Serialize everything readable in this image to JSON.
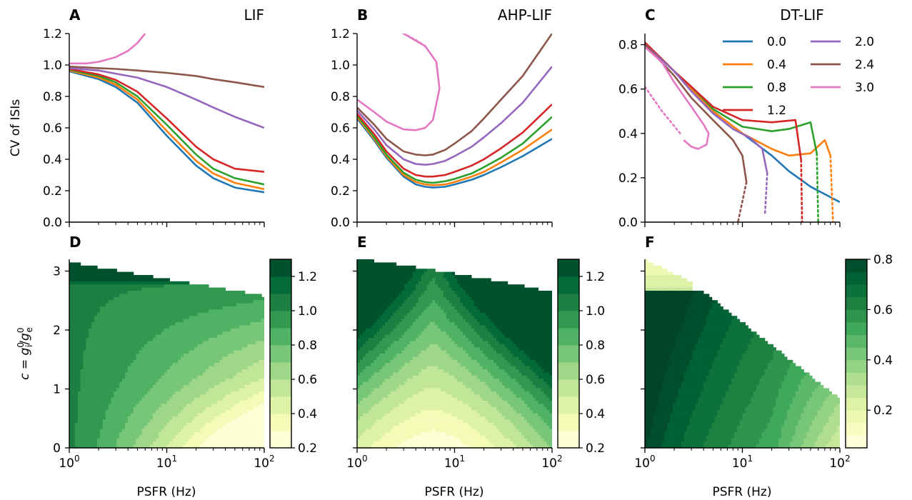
{
  "figure": {
    "panel_labels": [
      "A",
      "B",
      "C",
      "D",
      "E",
      "F"
    ],
    "titles": [
      "LIF",
      "AHP-LIF",
      "DT-LIF"
    ],
    "xlabel": "PSFR (Hz)",
    "ylabel_top": "CV of ISIs",
    "ylabel_bottom": "c = g_i^0/g_e^0",
    "legend_title": ""
  },
  "chart_data": [
    {
      "panel": "A",
      "type": "line",
      "title": "LIF",
      "xlabel": "",
      "ylabel": "CV of ISIs",
      "xscale": "log",
      "xlim": [
        1,
        100
      ],
      "ylim": [
        0,
        1.2
      ],
      "xticks": [
        1,
        10,
        100
      ],
      "xtick_labels": [
        "",
        "",
        ""
      ],
      "yticks": [
        0,
        0.2,
        0.4,
        0.6,
        0.8,
        1.0,
        1.2
      ],
      "ytick_labels": [
        "0.0",
        "0.2",
        "0.4",
        "0.6",
        "0.8",
        "1.0",
        "1.2"
      ],
      "series": [
        {
          "name": "0.0",
          "color": "#1f77b4",
          "x": [
            1,
            2,
            3,
            5,
            10,
            20,
            30,
            50,
            100
          ],
          "y": [
            0.96,
            0.91,
            0.86,
            0.76,
            0.55,
            0.36,
            0.28,
            0.22,
            0.19
          ]
        },
        {
          "name": "0.4",
          "color": "#ff7f0e",
          "x": [
            1,
            2,
            3,
            5,
            10,
            20,
            30,
            50,
            100
          ],
          "y": [
            0.965,
            0.92,
            0.875,
            0.78,
            0.58,
            0.39,
            0.31,
            0.25,
            0.21
          ]
        },
        {
          "name": "0.8",
          "color": "#2ca02c",
          "x": [
            1,
            2,
            3,
            5,
            10,
            20,
            30,
            50,
            100
          ],
          "y": [
            0.97,
            0.93,
            0.89,
            0.8,
            0.62,
            0.43,
            0.34,
            0.28,
            0.24
          ]
        },
        {
          "name": "1.2",
          "color": "#d62728",
          "x": [
            1,
            2,
            3,
            5,
            10,
            20,
            30,
            50,
            100
          ],
          "y": [
            0.975,
            0.94,
            0.905,
            0.83,
            0.66,
            0.48,
            0.4,
            0.34,
            0.32
          ]
        },
        {
          "name": "2.0",
          "color": "#9467bd",
          "x": [
            1,
            2,
            3,
            5,
            10,
            20,
            30,
            50,
            100
          ],
          "y": [
            0.98,
            0.965,
            0.945,
            0.92,
            0.86,
            0.78,
            0.73,
            0.67,
            0.6
          ]
        },
        {
          "name": "2.4",
          "color": "#8c564b",
          "x": [
            1,
            2,
            3,
            5,
            10,
            20,
            30,
            50,
            100
          ],
          "y": [
            0.99,
            0.98,
            0.975,
            0.965,
            0.95,
            0.93,
            0.91,
            0.89,
            0.86
          ]
        },
        {
          "name": "3.0",
          "color": "#e377c2",
          "x": [
            1,
            1.5,
            2,
            3,
            4,
            5,
            6
          ],
          "y": [
            1.01,
            1.01,
            1.02,
            1.05,
            1.09,
            1.14,
            1.2
          ]
        }
      ]
    },
    {
      "panel": "B",
      "type": "line",
      "title": "AHP-LIF",
      "xlabel": "",
      "ylabel": "",
      "xscale": "log",
      "xlim": [
        1,
        100
      ],
      "ylim": [
        0,
        1.2
      ],
      "xticks": [
        1,
        10,
        100
      ],
      "xtick_labels": [
        "",
        "",
        ""
      ],
      "yticks": [
        0,
        0.2,
        0.4,
        0.6,
        0.8,
        1.0,
        1.2
      ],
      "ytick_labels": [
        "0.0",
        "0.2",
        "0.4",
        "0.6",
        "0.8",
        "1.0",
        "1.2"
      ],
      "series": [
        {
          "name": "0.0",
          "color": "#1f77b4",
          "x": [
            1,
            1.5,
            2,
            3,
            4,
            5,
            6,
            8,
            10,
            15,
            20,
            30,
            50,
            100
          ],
          "y": [
            0.66,
            0.52,
            0.41,
            0.29,
            0.24,
            0.225,
            0.22,
            0.225,
            0.24,
            0.27,
            0.3,
            0.35,
            0.42,
            0.53
          ]
        },
        {
          "name": "0.4",
          "color": "#ff7f0e",
          "x": [
            1,
            1.5,
            2,
            3,
            4,
            5,
            6,
            8,
            10,
            15,
            20,
            30,
            50,
            100
          ],
          "y": [
            0.67,
            0.53,
            0.42,
            0.3,
            0.255,
            0.24,
            0.235,
            0.24,
            0.255,
            0.29,
            0.32,
            0.38,
            0.46,
            0.59
          ]
        },
        {
          "name": "0.8",
          "color": "#2ca02c",
          "x": [
            1,
            1.5,
            2,
            3,
            4,
            5,
            6,
            8,
            10,
            15,
            20,
            30,
            50,
            100
          ],
          "y": [
            0.68,
            0.54,
            0.43,
            0.315,
            0.27,
            0.255,
            0.25,
            0.26,
            0.275,
            0.31,
            0.35,
            0.41,
            0.5,
            0.67
          ]
        },
        {
          "name": "1.2",
          "color": "#d62728",
          "x": [
            1,
            1.5,
            2,
            3,
            4,
            5,
            6,
            8,
            10,
            15,
            20,
            30,
            50,
            100
          ],
          "y": [
            0.69,
            0.56,
            0.45,
            0.34,
            0.3,
            0.29,
            0.29,
            0.3,
            0.32,
            0.36,
            0.4,
            0.47,
            0.57,
            0.75
          ]
        },
        {
          "name": "2.0",
          "color": "#9467bd",
          "x": [
            1,
            1.5,
            2,
            3,
            4,
            5,
            6,
            8,
            10,
            15,
            20,
            30,
            50,
            100
          ],
          "y": [
            0.71,
            0.59,
            0.49,
            0.4,
            0.37,
            0.365,
            0.37,
            0.39,
            0.42,
            0.48,
            0.54,
            0.63,
            0.76,
            0.99
          ]
        },
        {
          "name": "2.4",
          "color": "#8c564b",
          "x": [
            1,
            1.5,
            2,
            3,
            4,
            5,
            6,
            8,
            10,
            15,
            20,
            30,
            50,
            100
          ],
          "y": [
            0.73,
            0.62,
            0.53,
            0.45,
            0.43,
            0.425,
            0.43,
            0.46,
            0.5,
            0.58,
            0.66,
            0.78,
            0.93,
            1.2
          ]
        },
        {
          "name": "3.0",
          "color": "#e377c2",
          "x": [
            1,
            1.5,
            2,
            3,
            4,
            5,
            6
          ],
          "y": [
            0.78,
            0.7,
            0.64,
            0.59,
            0.585,
            0.6,
            0.65
          ],
          "x_upper": [
            6,
            7,
            6.5,
            5,
            3
          ],
          "y_upper": [
            0.65,
            0.85,
            1.02,
            1.12,
            1.2
          ]
        }
      ]
    },
    {
      "panel": "C",
      "type": "line",
      "title": "DT-LIF",
      "xlabel": "",
      "ylabel": "",
      "xscale": "log",
      "xlim": [
        1,
        100
      ],
      "ylim": [
        0,
        0.85
      ],
      "xticks": [
        1,
        10,
        100
      ],
      "xtick_labels": [
        "",
        "",
        ""
      ],
      "yticks": [
        0,
        0.2,
        0.4,
        0.6,
        0.8
      ],
      "ytick_labels": [
        "0.0",
        "0.2",
        "0.4",
        "0.6",
        "0.8"
      ],
      "legend": {
        "placement": "top-right",
        "columns": 2
      },
      "series": [
        {
          "name": "0.0",
          "color": "#1f77b4",
          "x": [
            1,
            2,
            3,
            5,
            10,
            20,
            30,
            50,
            100
          ],
          "y": [
            0.81,
            0.68,
            0.6,
            0.5,
            0.4,
            0.3,
            0.23,
            0.16,
            0.09
          ]
        },
        {
          "name": "0.4",
          "color": "#ff7f0e",
          "x": [
            1,
            2,
            3,
            5,
            10,
            20,
            30,
            50,
            70,
            80
          ],
          "y": [
            0.81,
            0.68,
            0.6,
            0.5,
            0.4,
            0.33,
            0.3,
            0.31,
            0.37,
            0.3
          ],
          "x_drop": [
            80,
            85
          ],
          "y_drop": [
            0.3,
            0.0
          ]
        },
        {
          "name": "0.8",
          "color": "#2ca02c",
          "x": [
            1,
            2,
            3,
            5,
            10,
            20,
            30,
            50,
            58
          ],
          "y": [
            0.81,
            0.68,
            0.61,
            0.51,
            0.43,
            0.41,
            0.42,
            0.45,
            0.31
          ],
          "x_drop": [
            58,
            60
          ],
          "y_drop": [
            0.31,
            0.0
          ]
        },
        {
          "name": "1.2",
          "color": "#d62728",
          "x": [
            1,
            2,
            3,
            5,
            10,
            20,
            35,
            40
          ],
          "y": [
            0.81,
            0.68,
            0.61,
            0.52,
            0.46,
            0.45,
            0.46,
            0.28
          ],
          "x_drop": [
            40,
            41
          ],
          "y_drop": [
            0.28,
            0.0
          ]
        },
        {
          "name": "2.0",
          "color": "#9467bd",
          "x": [
            1,
            2,
            3,
            5,
            8,
            12,
            16,
            18
          ],
          "y": [
            0.8,
            0.68,
            0.59,
            0.49,
            0.42,
            0.38,
            0.33,
            0.22
          ],
          "x_drop": [
            18,
            17
          ],
          "y_drop": [
            0.22,
            0.03
          ]
        },
        {
          "name": "2.4",
          "color": "#8c564b",
          "x": [
            1,
            2,
            3,
            5,
            8,
            10,
            11
          ],
          "y": [
            0.8,
            0.66,
            0.56,
            0.46,
            0.37,
            0.3,
            0.18
          ],
          "x_drop": [
            11,
            9
          ],
          "y_drop": [
            0.18,
            0.0
          ]
        },
        {
          "name": "3.0",
          "color": "#e377c2",
          "x": [
            1,
            1.5,
            2,
            3,
            4,
            4.5,
            4.3,
            3.5,
            3,
            2.5
          ],
          "y": [
            0.79,
            0.72,
            0.63,
            0.52,
            0.44,
            0.4,
            0.35,
            0.33,
            0.34,
            0.37
          ],
          "x_drop": [
            1,
            1.5,
            2.3
          ],
          "y_drop": [
            0.61,
            0.5,
            0.4
          ]
        }
      ]
    },
    {
      "panel": "D",
      "type": "heatmap",
      "xlabel": "PSFR (Hz)",
      "ylabel": "c = g_i^0/g_e^0",
      "xscale": "log",
      "xlim": [
        1,
        100
      ],
      "ylim": [
        0,
        3.2
      ],
      "xtick_labels": [
        "10^0",
        "10^1",
        "10^2"
      ],
      "yticks": [
        0,
        1,
        2,
        3
      ],
      "ytick_labels": [
        "0",
        "1",
        "2",
        "3"
      ],
      "levels": [
        0.2,
        0.3,
        0.4,
        0.5,
        0.6,
        0.7,
        0.8,
        0.9,
        1.0,
        1.1,
        1.2,
        1.3
      ],
      "colorbar_ticks": [
        0.2,
        0.4,
        0.6,
        0.8,
        1.0,
        1.2
      ],
      "colorbar_tick_labels": [
        "0.2",
        "0.4",
        "0.6",
        "0.8",
        "1.0",
        "1.2"
      ]
    },
    {
      "panel": "E",
      "type": "heatmap",
      "xlabel": "PSFR (Hz)",
      "ylabel": "",
      "xscale": "log",
      "xlim": [
        1,
        100
      ],
      "ylim": [
        0,
        3.2
      ],
      "xtick_labels": [
        "10^0",
        "10^1",
        "10^2"
      ],
      "levels": [
        0.2,
        0.3,
        0.4,
        0.5,
        0.6,
        0.7,
        0.8,
        0.9,
        1.0,
        1.1,
        1.2,
        1.3
      ],
      "colorbar_ticks": [
        0.2,
        0.4,
        0.6,
        0.8,
        1.0,
        1.2
      ],
      "colorbar_tick_labels": [
        "0.2",
        "0.4",
        "0.6",
        "0.8",
        "1.0",
        "1.2"
      ]
    },
    {
      "panel": "F",
      "type": "heatmap",
      "xlabel": "PSFR (Hz)",
      "ylabel": "",
      "xscale": "log",
      "xlim": [
        1,
        100
      ],
      "ylim": [
        0,
        3.2
      ],
      "xtick_labels": [
        "10^0",
        "10^1",
        "10^2"
      ],
      "levels": [
        0.05,
        0.1,
        0.15,
        0.2,
        0.25,
        0.3,
        0.35,
        0.4,
        0.45,
        0.5,
        0.55,
        0.6,
        0.65,
        0.7,
        0.75,
        0.8
      ],
      "colorbar_ticks": [
        0.2,
        0.4,
        0.6,
        0.8
      ],
      "colorbar_tick_labels": [
        "0.2",
        "0.4",
        "0.6",
        "0.8"
      ]
    }
  ]
}
